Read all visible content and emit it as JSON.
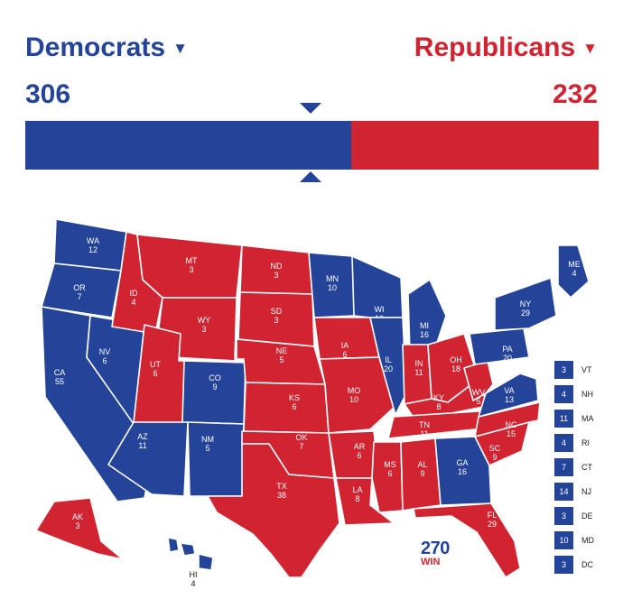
{
  "header": {
    "dem": {
      "name": "Democrats",
      "total": "306",
      "color": "#24449a"
    },
    "rep": {
      "name": "Republicans",
      "total": "232",
      "color": "#d22331"
    },
    "dem_share": 0.5688
  },
  "states": [
    {
      "abbr": "WA",
      "ev": "12",
      "party": "D"
    },
    {
      "abbr": "OR",
      "ev": "7",
      "party": "D"
    },
    {
      "abbr": "CA",
      "ev": "55",
      "party": "D"
    },
    {
      "abbr": "NV",
      "ev": "6",
      "party": "D"
    },
    {
      "abbr": "ID",
      "ev": "4",
      "party": "R"
    },
    {
      "abbr": "MT",
      "ev": "3",
      "party": "R"
    },
    {
      "abbr": "WY",
      "ev": "3",
      "party": "R"
    },
    {
      "abbr": "UT",
      "ev": "6",
      "party": "R"
    },
    {
      "abbr": "CO",
      "ev": "9",
      "party": "D"
    },
    {
      "abbr": "AZ",
      "ev": "11",
      "party": "D"
    },
    {
      "abbr": "NM",
      "ev": "5",
      "party": "D"
    },
    {
      "abbr": "ND",
      "ev": "3",
      "party": "R"
    },
    {
      "abbr": "SD",
      "ev": "3",
      "party": "R"
    },
    {
      "abbr": "NE",
      "ev": "5",
      "party": "R"
    },
    {
      "abbr": "KS",
      "ev": "6",
      "party": "R"
    },
    {
      "abbr": "OK",
      "ev": "7",
      "party": "R"
    },
    {
      "abbr": "TX",
      "ev": "38",
      "party": "R"
    },
    {
      "abbr": "MN",
      "ev": "10",
      "party": "D"
    },
    {
      "abbr": "IA",
      "ev": "6",
      "party": "R"
    },
    {
      "abbr": "MO",
      "ev": "10",
      "party": "R"
    },
    {
      "abbr": "AR",
      "ev": "6",
      "party": "R"
    },
    {
      "abbr": "LA",
      "ev": "8",
      "party": "R"
    },
    {
      "abbr": "WI",
      "ev": "10",
      "party": "D"
    },
    {
      "abbr": "IL",
      "ev": "20",
      "party": "D"
    },
    {
      "abbr": "MI",
      "ev": "16",
      "party": "D"
    },
    {
      "abbr": "IN",
      "ev": "11",
      "party": "R"
    },
    {
      "abbr": "OH",
      "ev": "18",
      "party": "R"
    },
    {
      "abbr": "KY",
      "ev": "8",
      "party": "R"
    },
    {
      "abbr": "TN",
      "ev": "11",
      "party": "R"
    },
    {
      "abbr": "MS",
      "ev": "6",
      "party": "R"
    },
    {
      "abbr": "AL",
      "ev": "9",
      "party": "R"
    },
    {
      "abbr": "GA",
      "ev": "16",
      "party": "D"
    },
    {
      "abbr": "FL",
      "ev": "29",
      "party": "R"
    },
    {
      "abbr": "SC",
      "ev": "9",
      "party": "R"
    },
    {
      "abbr": "NC",
      "ev": "15",
      "party": "R"
    },
    {
      "abbr": "VA",
      "ev": "13",
      "party": "D"
    },
    {
      "abbr": "WV",
      "ev": "5",
      "party": "R"
    },
    {
      "abbr": "PA",
      "ev": "20",
      "party": "D"
    },
    {
      "abbr": "NY",
      "ev": "29",
      "party": "D"
    },
    {
      "abbr": "ME",
      "ev": "4",
      "party": "D"
    },
    {
      "abbr": "AK",
      "ev": "3",
      "party": "R"
    },
    {
      "abbr": "HI",
      "ev": "4",
      "party": "D"
    }
  ],
  "small_states": [
    {
      "abbr": "VT",
      "ev": "3"
    },
    {
      "abbr": "NH",
      "ev": "4"
    },
    {
      "abbr": "MA",
      "ev": "11"
    },
    {
      "abbr": "RI",
      "ev": "4"
    },
    {
      "abbr": "CT",
      "ev": "7"
    },
    {
      "abbr": "NJ",
      "ev": "14"
    },
    {
      "abbr": "DE",
      "ev": "3"
    },
    {
      "abbr": "MD",
      "ev": "10"
    },
    {
      "abbr": "DC",
      "ev": "3"
    }
  ],
  "logo": {
    "number": "270",
    "sub": "WIN"
  }
}
